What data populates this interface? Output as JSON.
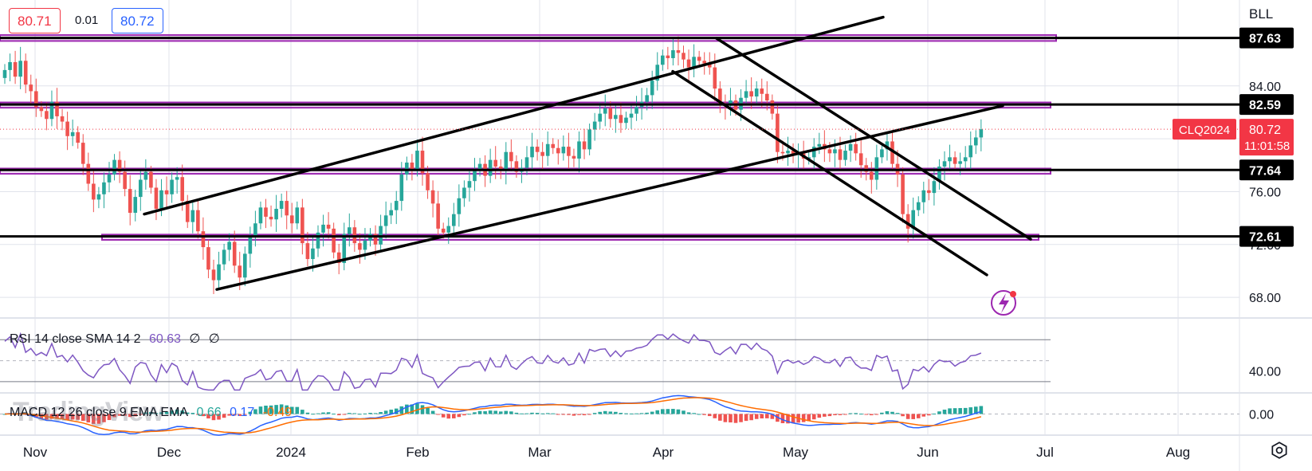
{
  "quote": {
    "bid": "80.71",
    "spread": "0.01",
    "ask": "80.72"
  },
  "scale_mode": "BLL",
  "chart_data": {
    "type": "candlestick",
    "symbol": "CLQ2024",
    "last_price": "80.72",
    "countdown": "11:01:58",
    "colors": {
      "up": "#26a69a",
      "down": "#ef5350",
      "zone": "#9c27b0",
      "symbol_tag": "#f23645"
    },
    "price_axis_ticks": [
      84.0,
      80.0,
      76.0,
      72.0,
      68.0
    ],
    "ylim": [
      66.5,
      90.5
    ],
    "time_axis_labels": [
      "Nov",
      "Dec",
      "2024",
      "Feb",
      "Mar",
      "Apr",
      "May",
      "Jun",
      "Jul",
      "Aug"
    ],
    "horizontal_levels": [
      {
        "price": 87.63,
        "label": "87.63"
      },
      {
        "price": 82.59,
        "label": "82.59"
      },
      {
        "price": 77.64,
        "label": "77.64"
      },
      {
        "price": 72.61,
        "label": "72.61"
      }
    ],
    "closes": [
      85.2,
      85.8,
      84.7,
      85.9,
      84.1,
      83.6,
      82.4,
      82.1,
      81.5,
      82.8,
      81.7,
      81.3,
      80.2,
      80.5,
      79.7,
      78.1,
      76.6,
      75.4,
      75.8,
      76.7,
      77.3,
      78.4,
      77.5,
      76.2,
      74.4,
      75.6,
      76.9,
      77.5,
      76.3,
      74.7,
      76.1,
      75.8,
      76.9,
      77.1,
      75.3,
      73.7,
      74.6,
      73.0,
      71.8,
      70.1,
      69.3,
      70.5,
      71.6,
      72.2,
      70.4,
      69.5,
      71.3,
      72.6,
      73.6,
      74.8,
      74.1,
      73.9,
      74.7,
      75.3,
      74.2,
      73.6,
      74.8,
      72.1,
      70.9,
      71.7,
      72.9,
      73.5,
      73.2,
      71.4,
      70.6,
      72.8,
      73.3,
      72.1,
      71.6,
      72.3,
      72.8,
      72.0,
      73.4,
      74.2,
      74.6,
      75.3,
      77.3,
      78.2,
      77.7,
      79.1,
      77.4,
      76.1,
      75.1,
      73.2,
      72.9,
      73.4,
      74.3,
      75.5,
      76.3,
      76.8,
      77.6,
      78.1,
      77.2,
      78.4,
      77.9,
      77.6,
      79.0,
      78.3,
      77.5,
      77.8,
      78.6,
      79.4,
      79.0,
      78.7,
      79.6,
      79.3,
      78.9,
      79.4,
      78.7,
      78.5,
      79.8,
      79.2,
      80.7,
      81.3,
      81.9,
      82.3,
      81.5,
      81.8,
      81.2,
      81.6,
      81.9,
      82.4,
      82.8,
      83.3,
      84.4,
      85.6,
      86.3,
      86.1,
      86.7,
      86.5,
      86.0,
      85.4,
      86.2,
      85.9,
      85.7,
      85.4,
      83.8,
      82.6,
      82.5,
      82.9,
      82.2,
      83.1,
      83.6,
      83.2,
      83.8,
      83.4,
      82.9,
      81.9,
      79.0,
      78.9,
      79.1,
      78.8,
      78.9,
      78.5,
      78.6,
      79.4,
      79.6,
      79.2,
      78.9,
      79.2,
      78.4,
      79.1,
      79.6,
      78.9,
      78.0,
      77.5,
      76.9,
      78.6,
      79.2,
      79.8,
      78.1,
      77.3,
      74.3,
      73.2,
      74.6,
      75.2,
      76.1,
      75.9,
      76.8,
      77.9,
      78.3,
      78.6,
      78.1,
      78.3,
      78.6,
      79.5,
      80.1,
      80.72
    ],
    "rsi": {
      "label": "RSI 14 close SMA 14 2",
      "value": "60.63",
      "extra": [
        "∅",
        "∅"
      ],
      "ylim": [
        20,
        90
      ],
      "ticks": [
        40.0
      ],
      "bands": [
        70,
        50,
        30
      ],
      "color": "#7e57c2"
    },
    "macd": {
      "label": "MACD 12 26 close 9 EMA EMA",
      "histogram": "0.66",
      "macd": "0.17",
      "signal": "-0.49",
      "ticks": [
        0.0
      ],
      "ylim": [
        -2.2,
        2.2
      ],
      "colors": {
        "hist": "#26a69a",
        "macd": "#2962ff",
        "signal": "#ff6d00",
        "hist_neg": "#ef5350"
      }
    }
  },
  "watermark": "TradingView"
}
